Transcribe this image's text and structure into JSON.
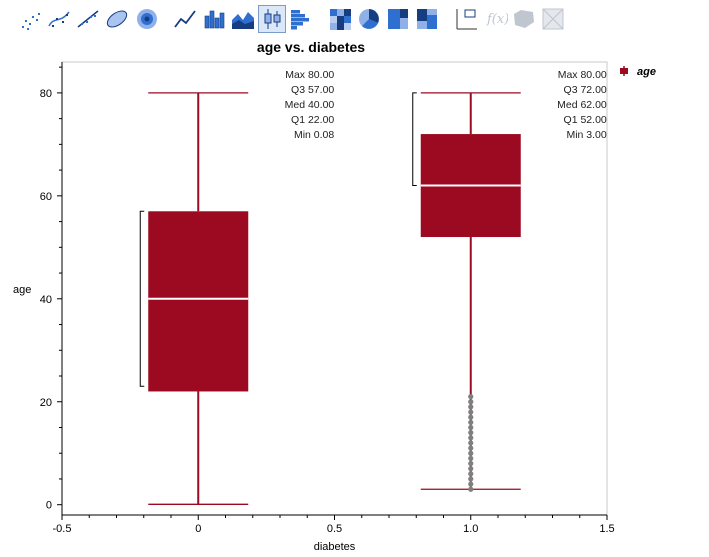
{
  "toolbar": {
    "buttons": [
      {
        "name": "points-icon",
        "active": false
      },
      {
        "name": "contour-points-icon",
        "active": false
      },
      {
        "name": "line-of-fit-icon",
        "active": false
      },
      {
        "name": "ellipse-icon",
        "active": false
      },
      {
        "name": "density-icon",
        "active": false
      },
      {
        "name": "line-icon",
        "active": false
      },
      {
        "name": "bar-icon",
        "active": false
      },
      {
        "name": "area-icon",
        "active": false
      },
      {
        "name": "box-plot-icon",
        "active": true
      },
      {
        "name": "histogram-icon",
        "active": false
      },
      {
        "name": "heatmap-icon",
        "active": false
      },
      {
        "name": "pie-icon",
        "active": false
      },
      {
        "name": "treemap-icon",
        "active": false
      },
      {
        "name": "mosaic-icon",
        "active": false
      },
      {
        "name": "caption-box-icon",
        "active": false
      },
      {
        "name": "formula-icon",
        "active": false
      },
      {
        "name": "map-shapes-icon",
        "active": false
      },
      {
        "name": "custom-icon",
        "active": false
      }
    ]
  },
  "colors": {
    "box": "#9b0a20",
    "median": "#ffffff",
    "outlier": "#7f7f7f",
    "axis": "#000000",
    "frame": "#c8c8c8"
  },
  "chart_data": {
    "type": "box",
    "title": "age vs. diabetes",
    "xlabel": "diabetes",
    "ylabel": "age",
    "xlim": [
      -0.5,
      1.5
    ],
    "ylim": [
      -2,
      86
    ],
    "x_ticks": [
      "-0.5",
      "0",
      "0.5",
      "1.0",
      "1.5"
    ],
    "x_tick_values": [
      -0.5,
      0,
      0.5,
      1.0,
      1.5
    ],
    "y_ticks": [
      "0",
      "20",
      "40",
      "60",
      "80"
    ],
    "y_tick_values": [
      0,
      20,
      40,
      60,
      80
    ],
    "legend": {
      "entries": [
        "age"
      ],
      "position": "right"
    },
    "grid": false,
    "groups": [
      {
        "x": 0,
        "min": 0.08,
        "q1": 22.0,
        "median": 40.0,
        "q3": 57.0,
        "max": 80.0,
        "shortest_half": [
          23,
          57
        ],
        "outliers": [],
        "stats_lines": [
          {
            "label": "Max",
            "value": "80.00"
          },
          {
            "label": "Q3",
            "value": "57.00"
          },
          {
            "label": "Med",
            "value": "40.00"
          },
          {
            "label": "Q1",
            "value": "22.00"
          },
          {
            "label": "Min",
            "value": "0.08"
          }
        ]
      },
      {
        "x": 1.0,
        "min": 3.0,
        "q1": 52.0,
        "median": 62.0,
        "q3": 72.0,
        "max": 80.0,
        "shortest_half": [
          62,
          80
        ],
        "outliers": [
          3,
          4,
          5,
          6,
          7,
          8,
          9,
          10,
          11,
          12,
          13,
          14,
          15,
          16,
          17,
          18,
          19,
          20,
          21
        ],
        "stats_lines": [
          {
            "label": "Max",
            "value": "80.00"
          },
          {
            "label": "Q3",
            "value": "72.00"
          },
          {
            "label": "Med",
            "value": "62.00"
          },
          {
            "label": "Q1",
            "value": "52.00"
          },
          {
            "label": "Min",
            "value": "3.00"
          }
        ]
      }
    ]
  }
}
